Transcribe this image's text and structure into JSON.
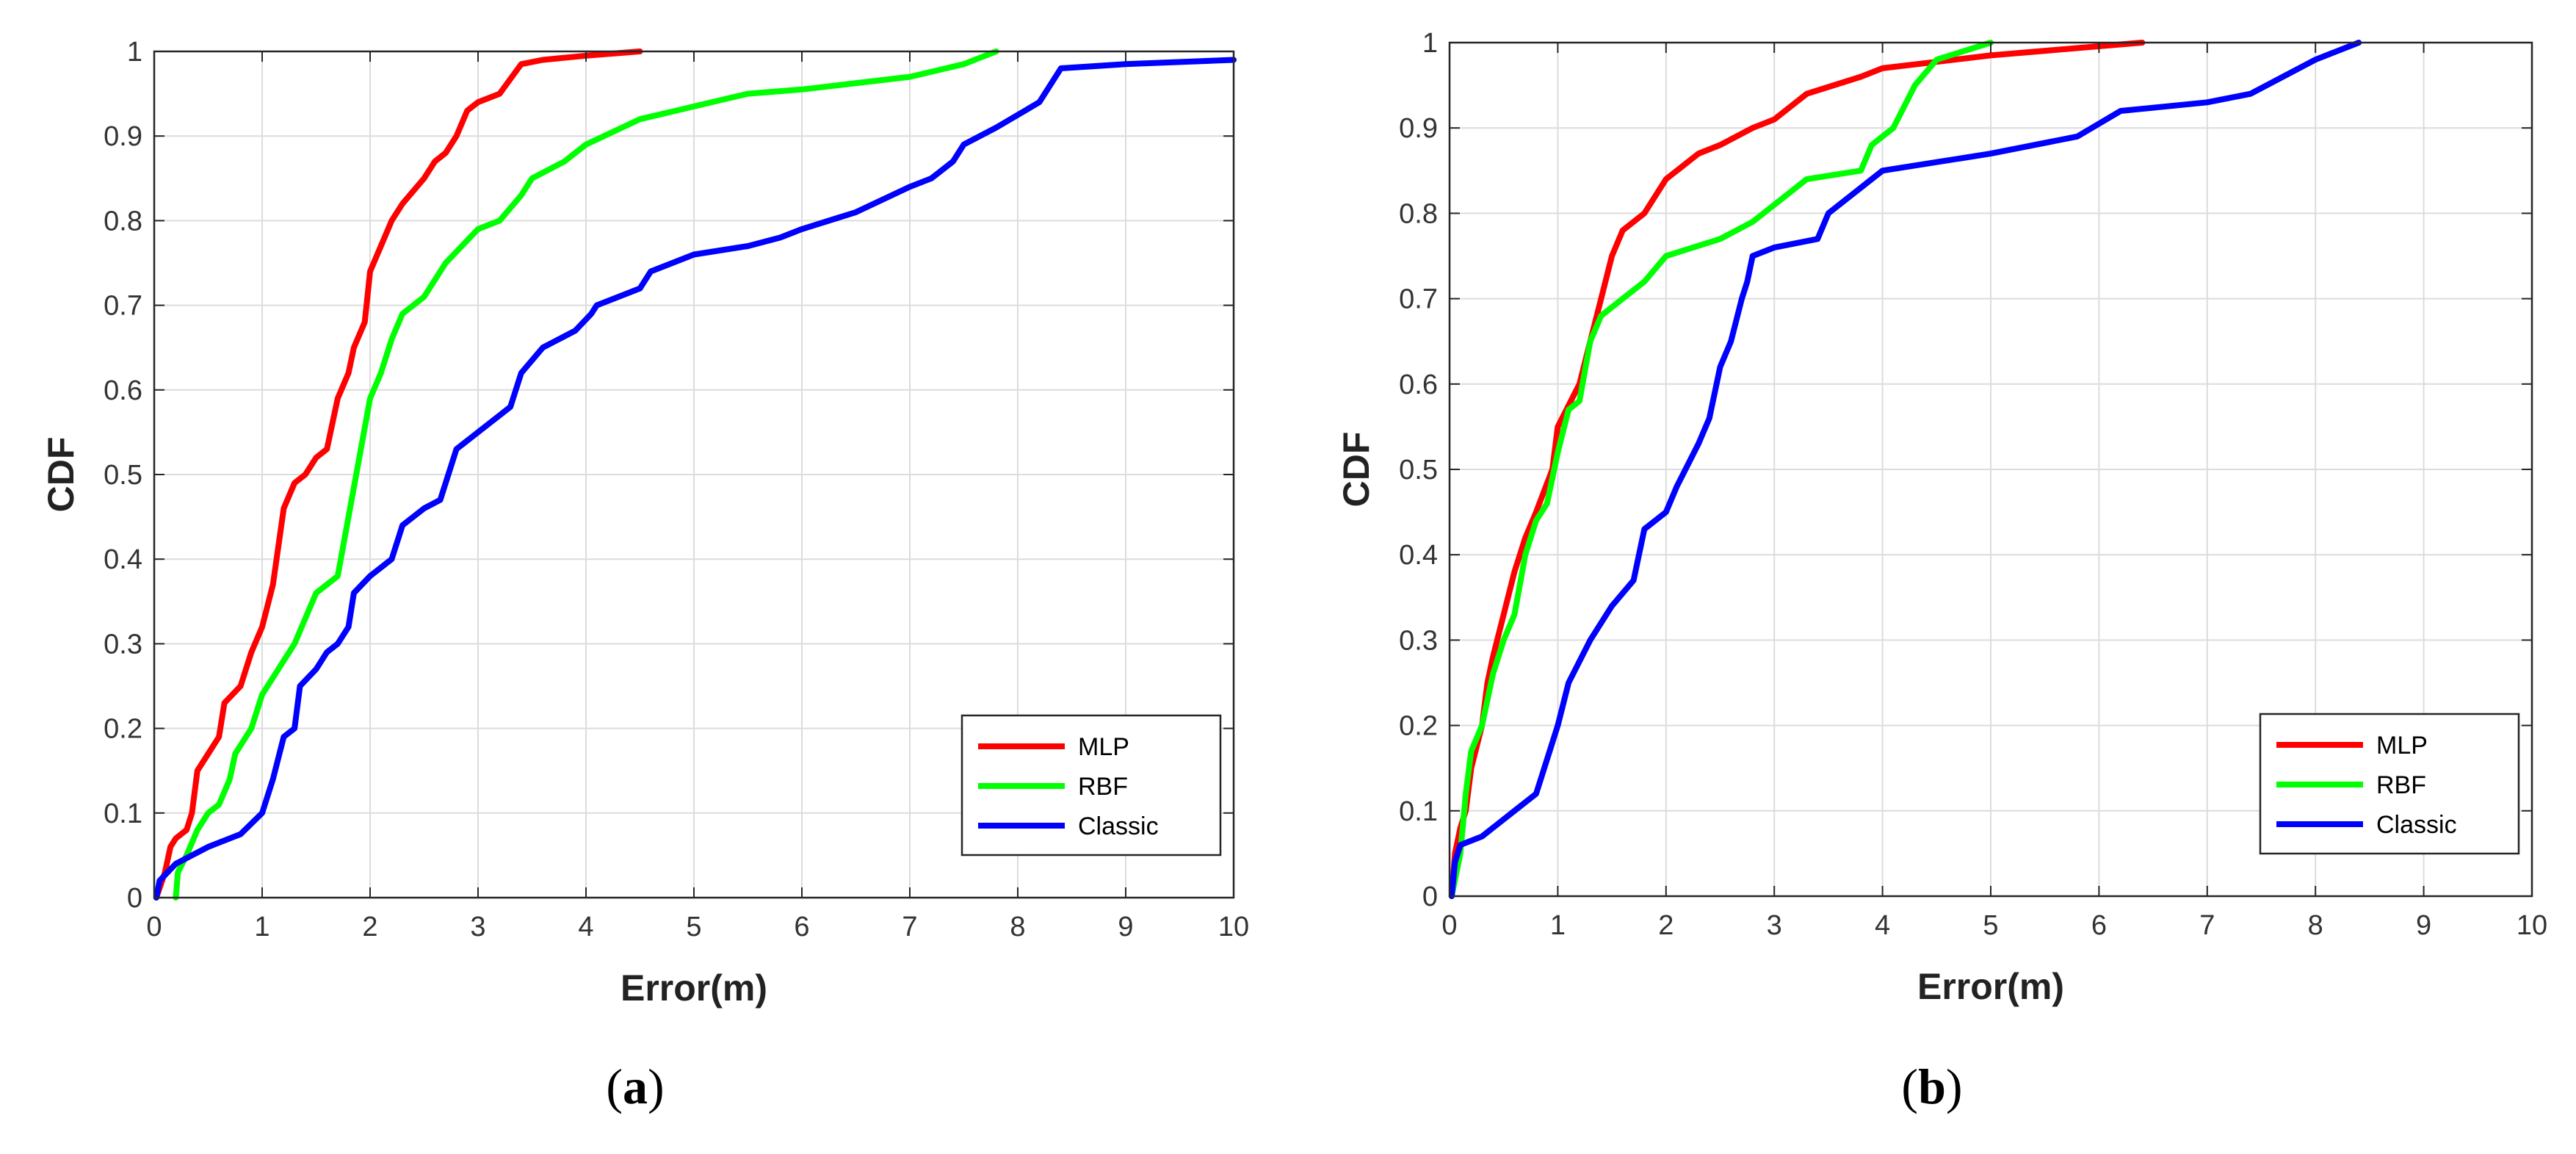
{
  "chart_data": [
    {
      "type": "line",
      "panel": "a",
      "caption_letter": "a",
      "xlabel": "Error(m)",
      "ylabel": "CDF",
      "xlim": [
        0,
        10
      ],
      "ylim": [
        0,
        1
      ],
      "xticks": [
        "0",
        "1",
        "2",
        "3",
        "4",
        "5",
        "6",
        "7",
        "8",
        "9",
        "10"
      ],
      "yticks": [
        "0",
        "0.1",
        "0.2",
        "0.3",
        "0.4",
        "0.5",
        "0.6",
        "0.7",
        "0.8",
        "0.9",
        "1"
      ],
      "grid": true,
      "legend_position": "bottom-right",
      "series": [
        {
          "name": "MLP",
          "color": "#ff0000",
          "points": [
            [
              0.02,
              0
            ],
            [
              0.1,
              0.03
            ],
            [
              0.15,
              0.06
            ],
            [
              0.2,
              0.07
            ],
            [
              0.3,
              0.08
            ],
            [
              0.35,
              0.1
            ],
            [
              0.4,
              0.15
            ],
            [
              0.5,
              0.17
            ],
            [
              0.6,
              0.19
            ],
            [
              0.65,
              0.23
            ],
            [
              0.8,
              0.25
            ],
            [
              0.9,
              0.29
            ],
            [
              1.0,
              0.32
            ],
            [
              1.1,
              0.37
            ],
            [
              1.2,
              0.46
            ],
            [
              1.3,
              0.49
            ],
            [
              1.4,
              0.5
            ],
            [
              1.5,
              0.52
            ],
            [
              1.6,
              0.53
            ],
            [
              1.7,
              0.59
            ],
            [
              1.8,
              0.62
            ],
            [
              1.85,
              0.65
            ],
            [
              1.95,
              0.68
            ],
            [
              2.0,
              0.74
            ],
            [
              2.1,
              0.77
            ],
            [
              2.2,
              0.8
            ],
            [
              2.3,
              0.82
            ],
            [
              2.5,
              0.85
            ],
            [
              2.6,
              0.87
            ],
            [
              2.7,
              0.88
            ],
            [
              2.8,
              0.9
            ],
            [
              2.9,
              0.93
            ],
            [
              3.0,
              0.94
            ],
            [
              3.2,
              0.95
            ],
            [
              3.4,
              0.985
            ],
            [
              3.6,
              0.99
            ],
            [
              4.0,
              0.995
            ],
            [
              4.5,
              1.0
            ]
          ]
        },
        {
          "name": "RBF",
          "color": "#00ff00",
          "points": [
            [
              0.2,
              0
            ],
            [
              0.22,
              0.03
            ],
            [
              0.3,
              0.05
            ],
            [
              0.4,
              0.08
            ],
            [
              0.5,
              0.1
            ],
            [
              0.6,
              0.11
            ],
            [
              0.7,
              0.14
            ],
            [
              0.75,
              0.17
            ],
            [
              0.9,
              0.2
            ],
            [
              1.0,
              0.24
            ],
            [
              1.1,
              0.26
            ],
            [
              1.3,
              0.3
            ],
            [
              1.4,
              0.33
            ],
            [
              1.5,
              0.36
            ],
            [
              1.7,
              0.38
            ],
            [
              1.8,
              0.45
            ],
            [
              1.9,
              0.52
            ],
            [
              2.0,
              0.59
            ],
            [
              2.1,
              0.62
            ],
            [
              2.2,
              0.66
            ],
            [
              2.3,
              0.69
            ],
            [
              2.5,
              0.71
            ],
            [
              2.7,
              0.75
            ],
            [
              3.0,
              0.79
            ],
            [
              3.2,
              0.8
            ],
            [
              3.4,
              0.83
            ],
            [
              3.5,
              0.85
            ],
            [
              3.8,
              0.87
            ],
            [
              4.0,
              0.89
            ],
            [
              4.5,
              0.92
            ],
            [
              5.0,
              0.935
            ],
            [
              5.5,
              0.95
            ],
            [
              6.0,
              0.955
            ],
            [
              7.0,
              0.97
            ],
            [
              7.5,
              0.985
            ],
            [
              7.8,
              1.0
            ]
          ]
        },
        {
          "name": "Classic",
          "color": "#0000ff",
          "points": [
            [
              0.02,
              0
            ],
            [
              0.05,
              0.02
            ],
            [
              0.2,
              0.04
            ],
            [
              0.5,
              0.06
            ],
            [
              0.8,
              0.075
            ],
            [
              1.0,
              0.1
            ],
            [
              1.1,
              0.14
            ],
            [
              1.2,
              0.19
            ],
            [
              1.3,
              0.2
            ],
            [
              1.35,
              0.25
            ],
            [
              1.5,
              0.27
            ],
            [
              1.6,
              0.29
            ],
            [
              1.7,
              0.3
            ],
            [
              1.8,
              0.32
            ],
            [
              1.85,
              0.36
            ],
            [
              2.0,
              0.38
            ],
            [
              2.2,
              0.4
            ],
            [
              2.3,
              0.44
            ],
            [
              2.5,
              0.46
            ],
            [
              2.65,
              0.47
            ],
            [
              2.8,
              0.53
            ],
            [
              3.0,
              0.55
            ],
            [
              3.2,
              0.57
            ],
            [
              3.3,
              0.58
            ],
            [
              3.4,
              0.62
            ],
            [
              3.6,
              0.65
            ],
            [
              3.9,
              0.67
            ],
            [
              4.05,
              0.69
            ],
            [
              4.1,
              0.7
            ],
            [
              4.3,
              0.71
            ],
            [
              4.5,
              0.72
            ],
            [
              4.6,
              0.74
            ],
            [
              5.0,
              0.76
            ],
            [
              5.5,
              0.77
            ],
            [
              5.8,
              0.78
            ],
            [
              6.0,
              0.79
            ],
            [
              6.5,
              0.81
            ],
            [
              7.0,
              0.84
            ],
            [
              7.2,
              0.85
            ],
            [
              7.4,
              0.87
            ],
            [
              7.5,
              0.89
            ],
            [
              7.8,
              0.91
            ],
            [
              8.2,
              0.94
            ],
            [
              8.4,
              0.98
            ],
            [
              9.0,
              0.985
            ],
            [
              10.0,
              0.99
            ]
          ]
        }
      ]
    },
    {
      "type": "line",
      "panel": "b",
      "caption_letter": "b",
      "xlabel": "Error(m)",
      "ylabel": "CDF",
      "xlim": [
        0,
        10
      ],
      "ylim": [
        0,
        1
      ],
      "xticks": [
        "0",
        "1",
        "2",
        "3",
        "4",
        "5",
        "6",
        "7",
        "8",
        "9",
        "10"
      ],
      "yticks": [
        "0",
        "0.1",
        "0.2",
        "0.3",
        "0.4",
        "0.5",
        "0.6",
        "0.7",
        "0.8",
        "0.9",
        "1"
      ],
      "grid": true,
      "legend_position": "bottom-right",
      "series": [
        {
          "name": "MLP",
          "color": "#ff0000",
          "points": [
            [
              0.02,
              0
            ],
            [
              0.05,
              0.05
            ],
            [
              0.1,
              0.08
            ],
            [
              0.15,
              0.1
            ],
            [
              0.2,
              0.15
            ],
            [
              0.3,
              0.2
            ],
            [
              0.35,
              0.25
            ],
            [
              0.4,
              0.28
            ],
            [
              0.5,
              0.33
            ],
            [
              0.6,
              0.38
            ],
            [
              0.7,
              0.42
            ],
            [
              0.8,
              0.45
            ],
            [
              0.95,
              0.5
            ],
            [
              1.0,
              0.55
            ],
            [
              1.2,
              0.6
            ],
            [
              1.3,
              0.65
            ],
            [
              1.4,
              0.7
            ],
            [
              1.5,
              0.75
            ],
            [
              1.6,
              0.78
            ],
            [
              1.8,
              0.8
            ],
            [
              2.0,
              0.84
            ],
            [
              2.3,
              0.87
            ],
            [
              2.5,
              0.88
            ],
            [
              2.8,
              0.9
            ],
            [
              3.0,
              0.91
            ],
            [
              3.3,
              0.94
            ],
            [
              3.8,
              0.96
            ],
            [
              4.0,
              0.97
            ],
            [
              5.0,
              0.985
            ],
            [
              6.4,
              1.0
            ]
          ]
        },
        {
          "name": "RBF",
          "color": "#00ff00",
          "points": [
            [
              0.02,
              0
            ],
            [
              0.1,
              0.05
            ],
            [
              0.15,
              0.12
            ],
            [
              0.2,
              0.17
            ],
            [
              0.3,
              0.2
            ],
            [
              0.4,
              0.26
            ],
            [
              0.5,
              0.3
            ],
            [
              0.6,
              0.33
            ],
            [
              0.7,
              0.4
            ],
            [
              0.8,
              0.44
            ],
            [
              0.9,
              0.46
            ],
            [
              1.0,
              0.52
            ],
            [
              1.1,
              0.57
            ],
            [
              1.2,
              0.58
            ],
            [
              1.3,
              0.65
            ],
            [
              1.4,
              0.68
            ],
            [
              1.6,
              0.7
            ],
            [
              1.8,
              0.72
            ],
            [
              2.0,
              0.75
            ],
            [
              2.5,
              0.77
            ],
            [
              2.8,
              0.79
            ],
            [
              3.0,
              0.81
            ],
            [
              3.3,
              0.84
            ],
            [
              3.8,
              0.85
            ],
            [
              3.9,
              0.88
            ],
            [
              4.1,
              0.9
            ],
            [
              4.3,
              0.95
            ],
            [
              4.5,
              0.98
            ],
            [
              5.0,
              1.0
            ]
          ]
        },
        {
          "name": "Classic",
          "color": "#0000ff",
          "points": [
            [
              0.02,
              0
            ],
            [
              0.05,
              0.04
            ],
            [
              0.1,
              0.06
            ],
            [
              0.3,
              0.07
            ],
            [
              0.6,
              0.1
            ],
            [
              0.8,
              0.12
            ],
            [
              0.85,
              0.14
            ],
            [
              1.0,
              0.2
            ],
            [
              1.1,
              0.25
            ],
            [
              1.3,
              0.3
            ],
            [
              1.5,
              0.34
            ],
            [
              1.7,
              0.37
            ],
            [
              1.8,
              0.43
            ],
            [
              2.0,
              0.45
            ],
            [
              2.1,
              0.48
            ],
            [
              2.3,
              0.53
            ],
            [
              2.4,
              0.56
            ],
            [
              2.5,
              0.62
            ],
            [
              2.6,
              0.65
            ],
            [
              2.7,
              0.7
            ],
            [
              2.75,
              0.72
            ],
            [
              2.8,
              0.75
            ],
            [
              3.0,
              0.76
            ],
            [
              3.4,
              0.77
            ],
            [
              3.5,
              0.8
            ],
            [
              4.0,
              0.85
            ],
            [
              4.5,
              0.86
            ],
            [
              5.0,
              0.87
            ],
            [
              5.8,
              0.89
            ],
            [
              6.2,
              0.92
            ],
            [
              7.0,
              0.93
            ],
            [
              7.4,
              0.94
            ],
            [
              8.0,
              0.98
            ],
            [
              8.4,
              1.0
            ]
          ]
        }
      ]
    }
  ]
}
